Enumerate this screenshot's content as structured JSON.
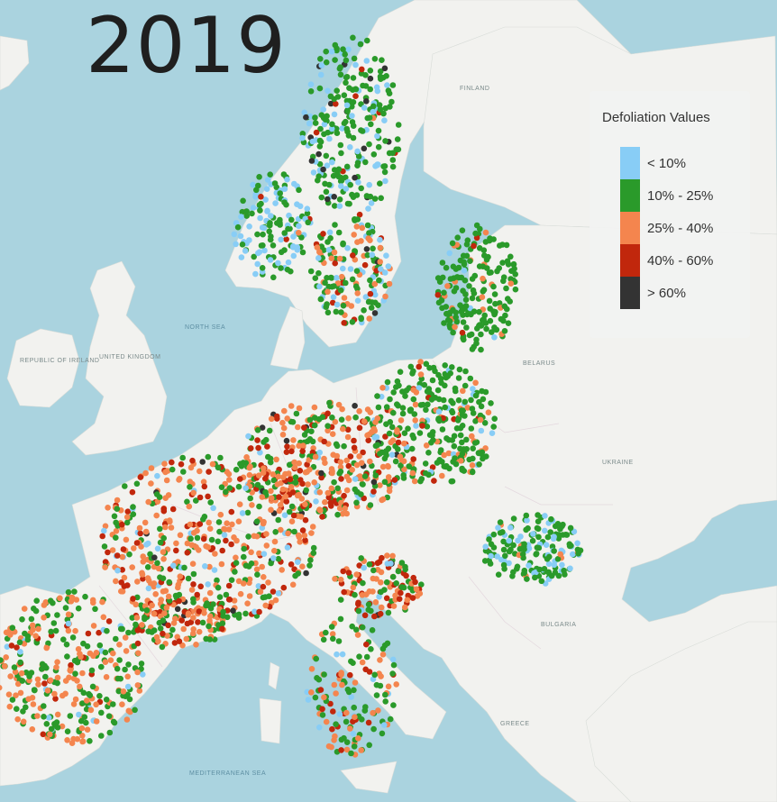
{
  "year": "2019",
  "legend": {
    "title": "Defoliation Values",
    "items": [
      {
        "label": "< 10%",
        "color": "#88cdf6"
      },
      {
        "label": "10% - 25%",
        "color": "#2a9a2a"
      },
      {
        "label": "25% - 40%",
        "color": "#f4854e"
      },
      {
        "label": "40% - 60%",
        "color": "#c1270c"
      },
      {
        "label": "> 60%",
        "color": "#333333"
      }
    ]
  },
  "basemap": {
    "water_color": "#aad3df",
    "land_color": "#f2f2ef",
    "labels": {
      "uk": "UNITED KINGDOM",
      "ireland": "REPUBLIC OF IRELAND",
      "belarus": "BELARUS",
      "ukraine": "UKRAINE",
      "finland": "FINLAND",
      "north_sea": "NORTH SEA",
      "med": "MEDITERRANEAN SEA",
      "greece": "GREECE",
      "bulgaria": "BULGARIA"
    }
  }
}
